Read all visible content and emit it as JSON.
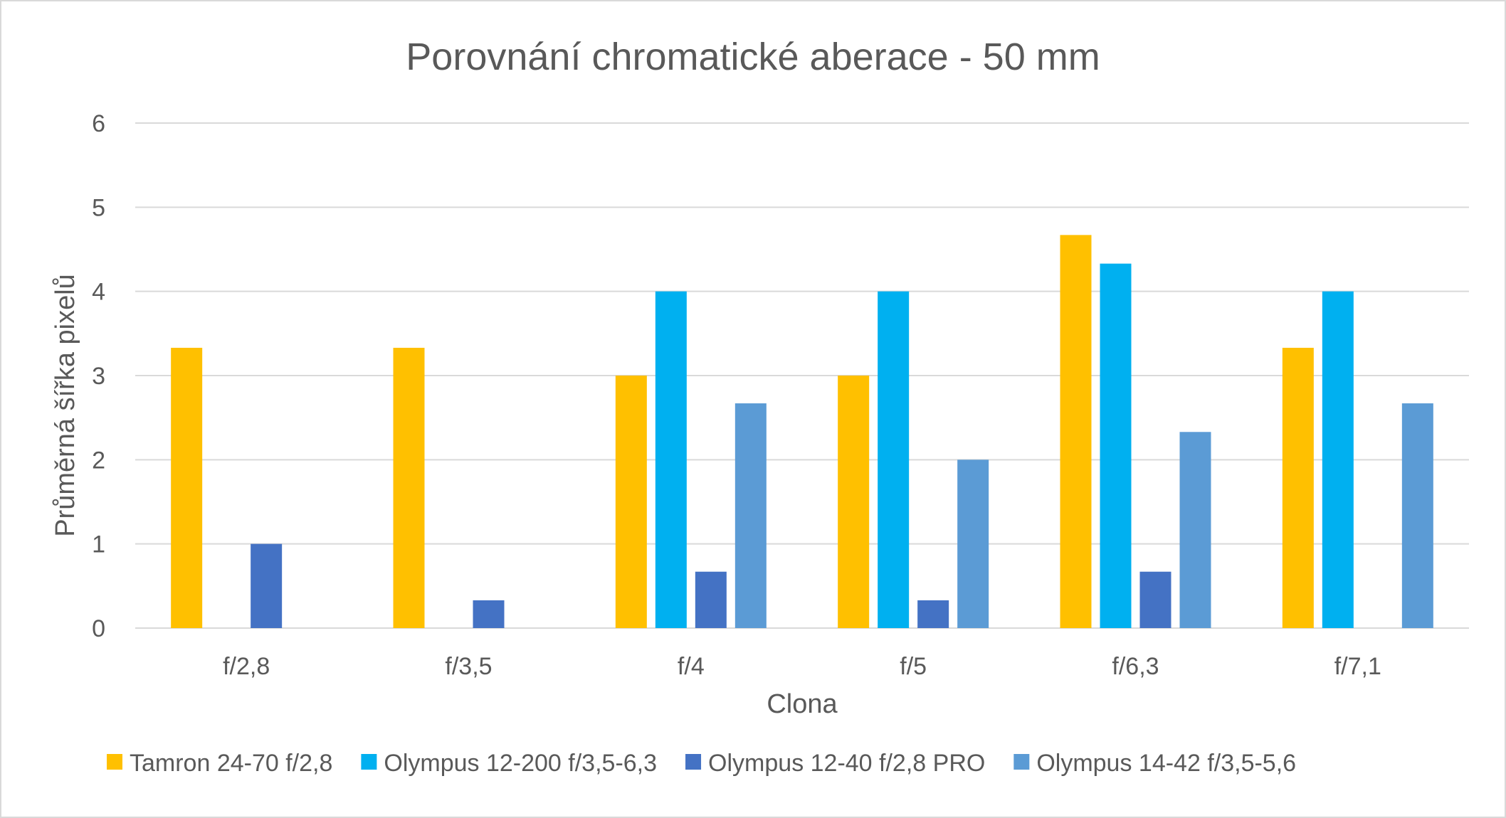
{
  "chart_data": {
    "type": "bar",
    "title": "Porovnání chromatické aberace - 50 mm",
    "xlabel": "Clona",
    "ylabel": "Průměrná šířka pixelů",
    "ylim": [
      0,
      6
    ],
    "yticks": [
      0,
      1,
      2,
      3,
      4,
      5,
      6
    ],
    "grid": true,
    "legend_position": "bottom",
    "categories": [
      "f/2,8",
      "f/3,5",
      "f/4",
      "f/5",
      "f/6,3",
      "f/7,1"
    ],
    "series": [
      {
        "name": "Tamron 24-70 f/2,8",
        "color": "#FFC000",
        "values": [
          3.33,
          3.33,
          3.0,
          3.0,
          4.67,
          3.33
        ]
      },
      {
        "name": "Olympus 12-200 f/3,5-6,3",
        "color": "#00B0F0",
        "values": [
          0,
          0,
          4.0,
          4.0,
          4.33,
          4.0
        ]
      },
      {
        "name": "Olympus 12-40 f/2,8 PRO",
        "color": "#4472C4",
        "values": [
          1.0,
          0.33,
          0.67,
          0.33,
          0.67,
          0
        ]
      },
      {
        "name": "Olympus 14-42 f/3,5-5,6",
        "color": "#5B9BD5",
        "values": [
          0,
          0,
          2.67,
          2.0,
          2.33,
          2.67
        ]
      }
    ]
  }
}
